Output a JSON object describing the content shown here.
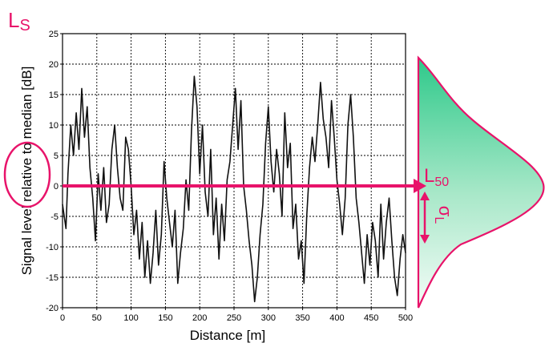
{
  "chart_data": {
    "type": "line",
    "title": "",
    "xlabel": "Distance [m]",
    "ylabel": "Signal level relative to median [dB]",
    "xlim": [
      0,
      500
    ],
    "ylim": [
      -20,
      25
    ],
    "x_ticks": [
      0,
      50,
      100,
      150,
      200,
      250,
      300,
      350,
      400,
      450,
      500
    ],
    "y_ticks": [
      25,
      20,
      15,
      10,
      5,
      0,
      -5,
      -10,
      -15,
      -20
    ],
    "grid": "dashed",
    "series": [
      {
        "color": "#111111",
        "x": [
          0,
          5,
          8,
          12,
          16,
          20,
          24,
          28,
          32,
          36,
          40,
          44,
          48,
          52,
          56,
          60,
          64,
          68,
          72,
          76,
          80,
          84,
          88,
          92,
          96,
          100,
          104,
          108,
          112,
          116,
          120,
          124,
          128,
          132,
          136,
          140,
          144,
          148,
          152,
          156,
          160,
          164,
          168,
          172,
          176,
          180,
          184,
          188,
          192,
          196,
          200,
          204,
          208,
          212,
          216,
          220,
          224,
          228,
          232,
          236,
          240,
          244,
          248,
          252,
          256,
          260,
          264,
          268,
          272,
          276,
          280,
          284,
          288,
          292,
          296,
          300,
          304,
          308,
          312,
          316,
          320,
          324,
          328,
          332,
          336,
          340,
          344,
          348,
          352,
          356,
          360,
          364,
          368,
          372,
          376,
          380,
          384,
          388,
          392,
          396,
          400,
          404,
          408,
          412,
          416,
          420,
          424,
          428,
          432,
          436,
          440,
          444,
          448,
          452,
          456,
          460,
          464,
          468,
          472,
          476,
          480,
          484,
          488,
          492,
          496,
          500
        ],
        "y": [
          -3,
          -7,
          2,
          10,
          5,
          12,
          6,
          16,
          8,
          13,
          3,
          -2,
          -9,
          2,
          -4,
          3,
          -6,
          -3,
          6,
          10,
          3,
          -2,
          -4,
          8,
          6,
          0,
          -8,
          -4,
          -12,
          -6,
          -15,
          -9,
          -16,
          -11,
          -4,
          -13,
          -8,
          4,
          -2,
          -6,
          -10,
          -4,
          -16,
          -11,
          -7,
          1,
          -4,
          9,
          18,
          13,
          2,
          10,
          -1,
          -5,
          6,
          -8,
          -2,
          -12,
          -3,
          -9,
          1,
          4,
          10,
          16,
          6,
          14,
          0,
          -4,
          -9,
          -13,
          -19,
          -15,
          -8,
          -3,
          7,
          13,
          4,
          -1,
          6,
          2,
          -5,
          12,
          3,
          7,
          -7,
          -3,
          -12,
          -9,
          -16,
          -5,
          3,
          8,
          4,
          10,
          17,
          11,
          8,
          3,
          14,
          8,
          1,
          -3,
          -8,
          -2,
          10,
          15,
          8,
          -2,
          -6,
          -11,
          -16,
          -8,
          -13,
          -6,
          -9,
          -15,
          -3,
          -12,
          -6,
          -2,
          -9,
          -15,
          -18,
          -12,
          -8,
          -11
        ]
      }
    ],
    "annotations": {
      "ls_label": "L",
      "ls_sub": "S",
      "l50_label": "L",
      "l50_sub": "50",
      "sigma_label": "σ",
      "sigma_sub": "L"
    }
  }
}
